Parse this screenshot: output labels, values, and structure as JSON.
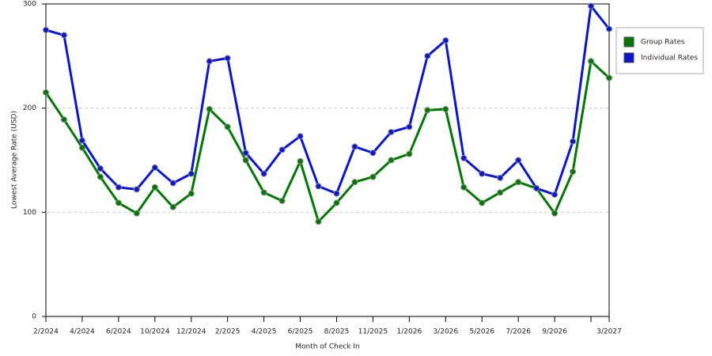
{
  "chart_data": {
    "type": "line",
    "x_label": "Month of Check In",
    "y_label": "Lowest Average Rate (USD)",
    "categories": [
      "2/2024",
      null,
      "4/2024",
      null,
      "6/2024",
      null,
      "10/2024",
      null,
      "12/2024",
      null,
      "2/2025",
      null,
      "4/2025",
      null,
      "6/2025",
      null,
      "8/2025",
      null,
      "11/2025",
      null,
      "1/2026",
      null,
      "3/2026",
      null,
      "5/2026",
      null,
      "7/2026",
      null,
      "9/2026",
      null,
      null,
      "3/2027"
    ],
    "series": [
      {
        "name": "Group Rates",
        "color": "#007a00",
        "values": [
          215,
          189,
          162,
          134,
          109,
          99,
          124,
          105,
          118,
          199,
          182,
          150,
          119,
          111,
          149,
          91,
          109,
          129,
          134,
          150,
          156,
          198,
          199,
          124,
          109,
          119,
          129,
          123,
          99,
          139,
          245,
          229
        ]
      },
      {
        "name": "Individual Rates",
        "color": "#0a14d8",
        "values": [
          275,
          270,
          169,
          142,
          124,
          122,
          143,
          128,
          137,
          245,
          248,
          157,
          137,
          160,
          173,
          125,
          118,
          163,
          157,
          177,
          182,
          250,
          265,
          152,
          137,
          133,
          150,
          123,
          117,
          168,
          298,
          276
        ]
      }
    ],
    "ylim": [
      0,
      300
    ],
    "yticks": [
      0,
      100,
      200,
      300
    ],
    "grid": true,
    "legend": "right"
  }
}
